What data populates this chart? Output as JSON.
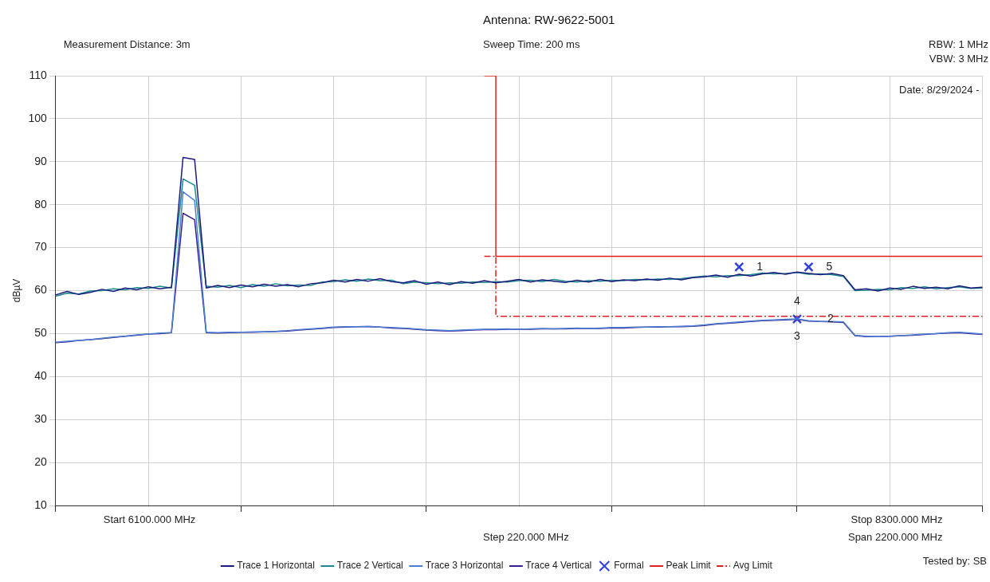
{
  "chart_data": {
    "type": "line",
    "title": "Antenna: RW-9622-5001",
    "ylabel": "dBµV",
    "annotations": [
      "Measurement Distance: 3m",
      "Sweep Time: 200 ms",
      "RBW: 1 MHz",
      "VBW: 3 MHz",
      "Date: 8/29/2024 -",
      "Tested by: SB",
      "Start 6100.000 MHz",
      "Stop 8300.000 MHz",
      "Step 220.000 MHz",
      "Span 2200.000 MHz",
      "1",
      "5",
      "2",
      "3",
      "4"
    ],
    "categories": [
      null,
      null,
      null,
      null,
      null,
      null,
      null,
      null,
      null,
      null,
      null,
      null,
      null,
      null,
      null,
      null,
      null,
      null,
      null,
      null,
      null,
      null,
      null,
      null,
      null,
      null,
      null,
      null,
      null,
      null,
      null,
      null,
      null,
      null,
      null,
      null,
      null,
      null,
      null,
      null,
      null,
      null,
      null,
      null,
      null,
      null,
      null,
      null,
      null,
      null,
      null,
      null,
      null,
      null,
      null,
      null,
      null,
      null,
      null,
      null,
      null,
      null,
      null,
      null,
      null,
      null,
      null,
      null,
      null,
      null,
      null,
      null,
      null,
      null,
      null,
      null,
      null,
      null,
      null,
      null,
      null
    ],
    "series": [
      {
        "name": "Trace 1 Horizontal",
        "color": "#1c1c7e",
        "values": [
          59.0,
          59.8,
          59.1,
          59.6,
          60.3,
          59.8,
          60.6,
          60.2,
          60.9,
          60.4,
          60.8,
          91.0,
          90.5,
          60.6,
          61.2,
          60.7,
          61.3,
          60.9,
          61.5,
          61.0,
          61.4,
          60.9,
          61.6,
          61.8,
          62.4,
          62.0,
          62.6,
          62.2,
          62.8,
          62.1,
          61.8,
          62.3,
          61.5,
          62.0,
          61.4,
          62.1,
          61.7,
          62.3,
          61.8,
          62.2,
          62.6,
          62.0,
          62.5,
          62.2,
          61.9,
          62.4,
          62.0,
          62.6,
          62.1,
          62.5,
          62.3,
          62.7,
          62.4,
          62.9,
          62.5,
          63.0,
          63.2,
          63.6,
          63.1,
          63.8,
          63.4,
          63.9,
          64.2,
          63.8,
          64.3,
          64.0,
          63.7,
          64.0,
          63.5,
          60.2,
          60.4,
          59.9,
          60.6,
          60.3,
          61.0,
          60.5,
          60.8,
          60.4,
          61.1,
          60.6,
          60.8
        ]
      },
      {
        "name": "Trace 2 Vertical",
        "color": "#1a8a8c",
        "values": [
          58.7,
          59.4,
          59.2,
          59.9,
          60.0,
          60.4,
          60.2,
          60.7,
          60.5,
          61.0,
          60.6,
          86.0,
          84.5,
          61.0,
          60.8,
          61.2,
          60.7,
          61.4,
          61.0,
          61.6,
          61.1,
          61.3,
          61.2,
          62.0,
          62.1,
          62.5,
          62.2,
          62.7,
          62.3,
          62.4,
          61.6,
          62.0,
          61.8,
          61.6,
          61.8,
          61.7,
          62.0,
          61.9,
          62.1,
          62.0,
          62.3,
          62.4,
          62.1,
          62.6,
          62.2,
          62.0,
          62.3,
          62.2,
          62.4,
          62.3,
          62.6,
          62.5,
          62.7,
          62.6,
          62.8,
          63.1,
          63.4,
          63.2,
          63.5,
          63.5,
          63.7,
          64.1,
          63.9,
          64.0,
          64.2,
          63.8,
          63.9,
          63.7,
          63.3,
          60.0,
          60.1,
          60.3,
          60.2,
          60.7,
          60.5,
          60.9,
          60.4,
          60.7,
          60.9,
          60.5,
          60.6
        ]
      },
      {
        "name": "Trace 3 Horizontal",
        "color": "#4d7ed6",
        "values": [
          48.0,
          48.2,
          48.4,
          48.6,
          48.9,
          49.2,
          49.4,
          49.7,
          49.9,
          50.1,
          50.2,
          83.0,
          81.0,
          50.3,
          50.2,
          50.3,
          50.3,
          50.4,
          50.4,
          50.5,
          50.7,
          50.9,
          51.1,
          51.3,
          51.5,
          51.6,
          51.6,
          51.7,
          51.5,
          51.4,
          51.3,
          51.1,
          50.9,
          50.8,
          50.7,
          50.8,
          50.9,
          51.0,
          51.0,
          51.1,
          51.0,
          51.1,
          51.2,
          51.1,
          51.2,
          51.3,
          51.2,
          51.3,
          51.4,
          51.4,
          51.5,
          51.5,
          51.6,
          51.6,
          51.7,
          51.8,
          52.0,
          52.3,
          52.5,
          52.7,
          52.9,
          53.1,
          53.2,
          53.3,
          53.4,
          53.0,
          52.8,
          52.8,
          52.7,
          49.6,
          49.4,
          49.3,
          49.4,
          49.5,
          49.7,
          49.9,
          50.0,
          50.2,
          50.3,
          50.1,
          49.9
        ]
      },
      {
        "name": "Trace 4 Vertical",
        "color": "#3b1f8c",
        "values": [
          47.9,
          48.1,
          48.4,
          48.6,
          48.8,
          49.1,
          49.4,
          49.6,
          49.9,
          50.0,
          50.2,
          78.0,
          76.5,
          50.2,
          50.1,
          50.2,
          50.3,
          50.3,
          50.4,
          50.5,
          50.6,
          50.8,
          51.0,
          51.2,
          51.4,
          51.5,
          51.6,
          51.6,
          51.5,
          51.3,
          51.2,
          51.0,
          50.8,
          50.7,
          50.6,
          50.7,
          50.8,
          50.9,
          50.9,
          51.0,
          51.0,
          51.0,
          51.1,
          51.1,
          51.1,
          51.2,
          51.2,
          51.2,
          51.3,
          51.3,
          51.4,
          51.5,
          51.5,
          51.6,
          51.6,
          51.7,
          51.9,
          52.2,
          52.4,
          52.6,
          52.8,
          53.0,
          53.1,
          53.2,
          53.3,
          52.9,
          52.8,
          52.7,
          52.6,
          49.5,
          49.3,
          49.3,
          49.4,
          49.5,
          49.6,
          49.8,
          50.0,
          50.1,
          50.2,
          50.0,
          49.8
        ]
      },
      {
        "name": "Formal",
        "type": "scatter",
        "marker": "cross",
        "color": "#3040dc",
        "values": [
          null,
          null,
          null,
          null,
          null,
          null,
          null,
          null,
          null,
          null,
          null,
          null,
          null,
          null,
          null,
          null,
          null,
          null,
          null,
          null,
          null,
          null,
          null,
          null,
          null,
          null,
          null,
          null,
          null,
          null,
          null,
          null,
          null,
          null,
          null,
          null,
          null,
          null,
          null,
          null,
          null,
          null,
          null,
          null,
          null,
          null,
          null,
          null,
          null,
          null,
          null,
          null,
          null,
          null,
          null,
          null,
          null,
          null,
          null,
          65.5,
          null,
          null,
          null,
          null,
          53.4,
          65.5,
          null,
          null,
          null,
          null,
          null,
          null,
          null,
          null,
          null,
          null,
          null,
          null,
          null,
          null,
          null
        ]
      },
      {
        "name": "Peak Limit",
        "type": "step",
        "color": "#e0201c",
        "values": [
          null,
          null,
          null,
          null,
          null,
          null,
          null,
          null,
          null,
          null,
          null,
          null,
          null,
          null,
          null,
          null,
          null,
          null,
          null,
          null,
          null,
          null,
          null,
          null,
          null,
          null,
          null,
          null,
          null,
          null,
          null,
          null,
          null,
          null,
          null,
          null,
          null,
          110,
          68,
          68,
          68,
          68,
          68,
          68,
          68,
          68,
          68,
          68,
          68,
          68,
          68,
          68,
          68,
          68,
          68,
          68,
          68,
          68,
          68,
          68,
          68,
          68,
          68,
          68,
          68,
          68,
          68,
          68,
          68,
          68,
          68,
          68,
          68,
          68,
          68,
          68,
          68,
          68,
          68,
          68,
          68
        ]
      },
      {
        "name": "Avg Limit",
        "type": "step",
        "color": "#e0201c",
        "line_style": "dashed",
        "values": [
          null,
          null,
          null,
          null,
          null,
          null,
          null,
          null,
          null,
          null,
          null,
          null,
          null,
          null,
          null,
          null,
          null,
          null,
          null,
          null,
          null,
          null,
          null,
          null,
          null,
          null,
          null,
          null,
          null,
          null,
          null,
          null,
          null,
          null,
          null,
          null,
          null,
          68,
          54,
          54,
          54,
          54,
          54,
          54,
          54,
          54,
          54,
          54,
          54,
          54,
          54,
          54,
          54,
          54,
          54,
          54,
          54,
          54,
          54,
          54,
          54,
          54,
          54,
          54,
          54,
          54,
          54,
          54,
          54,
          54,
          54,
          54,
          54,
          54,
          54,
          54,
          54,
          54,
          54,
          54,
          54
        ]
      }
    ],
    "ylim": [
      10,
      110
    ],
    "yticks": [
      10,
      20,
      30,
      40,
      50,
      60,
      70,
      80,
      90,
      100,
      110
    ],
    "grid": true,
    "legend": "bottom",
    "tick_labels": "y"
  }
}
